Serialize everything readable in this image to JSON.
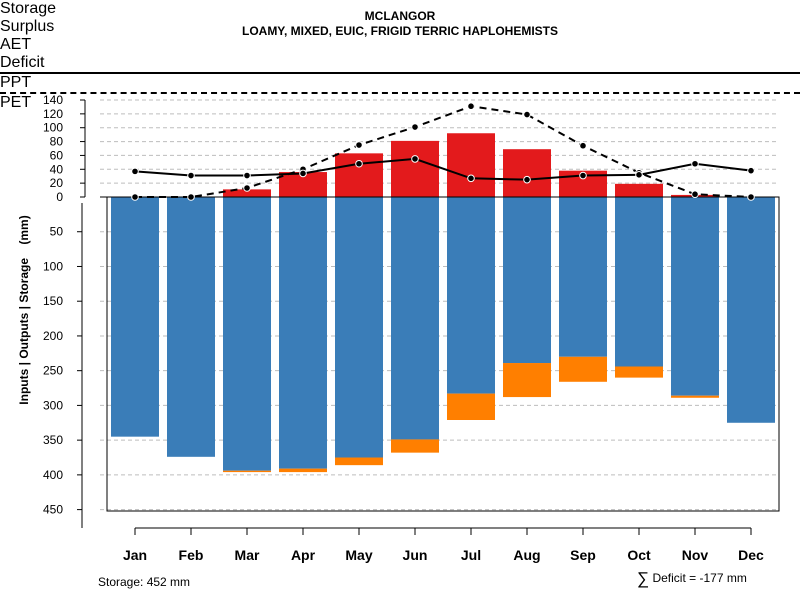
{
  "title": "MCLANGOR",
  "subtitle": "LOAMY, MIXED, EUIC, FRIGID TERRIC HAPLOHEMISTS",
  "storage_note": "Storage: 452 mm",
  "deficit_note": "Deficit = -177 mm",
  "deficit_symbol": "∑",
  "colors": {
    "storage": "#3a7db8",
    "surplus": "#4aac4a",
    "aet": "#e31a1c",
    "deficit": "#ff7f00",
    "line": "#000000",
    "grid": "#bdbdbd"
  },
  "legend": [
    {
      "label": "Storage",
      "kind": "swatch",
      "color": "#3a7db8"
    },
    {
      "label": "Surplus",
      "kind": "swatch",
      "color": "#4aac4a"
    },
    {
      "label": "AET",
      "kind": "swatch",
      "color": "#e31a1c"
    },
    {
      "label": "Deficit",
      "kind": "swatch",
      "color": "#ff7f00"
    },
    {
      "label": "PPT",
      "kind": "solid-line"
    },
    {
      "label": "PET",
      "kind": "dashed-line"
    }
  ],
  "chart_data": {
    "type": "bar",
    "title": "MCLANGOR",
    "subtitle": "LOAMY, MIXED, EUIC, FRIGID TERRIC HAPLOHEMISTS",
    "ylabel": "Inputs | Outputs | Storage    (mm)",
    "xlabel": "",
    "categories": [
      "Jan",
      "Feb",
      "Mar",
      "Apr",
      "May",
      "Jun",
      "Jul",
      "Aug",
      "Sep",
      "Oct",
      "Nov",
      "Dec"
    ],
    "yticks_up": [
      0,
      20,
      40,
      60,
      80,
      100,
      120,
      140
    ],
    "yticks_down": [
      50,
      100,
      150,
      200,
      250,
      300,
      350,
      400,
      450
    ],
    "ylim_up": [
      0,
      140
    ],
    "ylim_down": [
      0,
      452
    ],
    "grid": true,
    "legend_position": "top",
    "series": [
      {
        "name": "AET",
        "kind": "bar-up",
        "values": [
          0,
          0,
          11,
          36,
          63,
          81,
          92,
          69,
          38,
          19,
          3,
          0
        ]
      },
      {
        "name": "Storage",
        "kind": "bar-down",
        "values": [
          345,
          374,
          394,
          391,
          375,
          349,
          283,
          239,
          230,
          244,
          286,
          325
        ]
      },
      {
        "name": "Deficit",
        "kind": "bar-down-stacked",
        "values": [
          0,
          0,
          2,
          5,
          11,
          19,
          38,
          49,
          36,
          16,
          3,
          0
        ]
      },
      {
        "name": "Surplus",
        "kind": "bar-up",
        "values": [
          0,
          0,
          0,
          0,
          0,
          0,
          0,
          0,
          0,
          0,
          0,
          0
        ]
      },
      {
        "name": "PPT",
        "kind": "line-solid",
        "values": [
          37,
          31,
          31,
          34,
          48,
          55,
          27,
          25,
          31,
          32,
          48,
          38
        ]
      },
      {
        "name": "PET",
        "kind": "line-dashed",
        "values": [
          0,
          0,
          13,
          40,
          75,
          101,
          131,
          119,
          74,
          35,
          4,
          0
        ]
      }
    ],
    "total_storage_mm": 452,
    "total_deficit_mm": -177
  }
}
